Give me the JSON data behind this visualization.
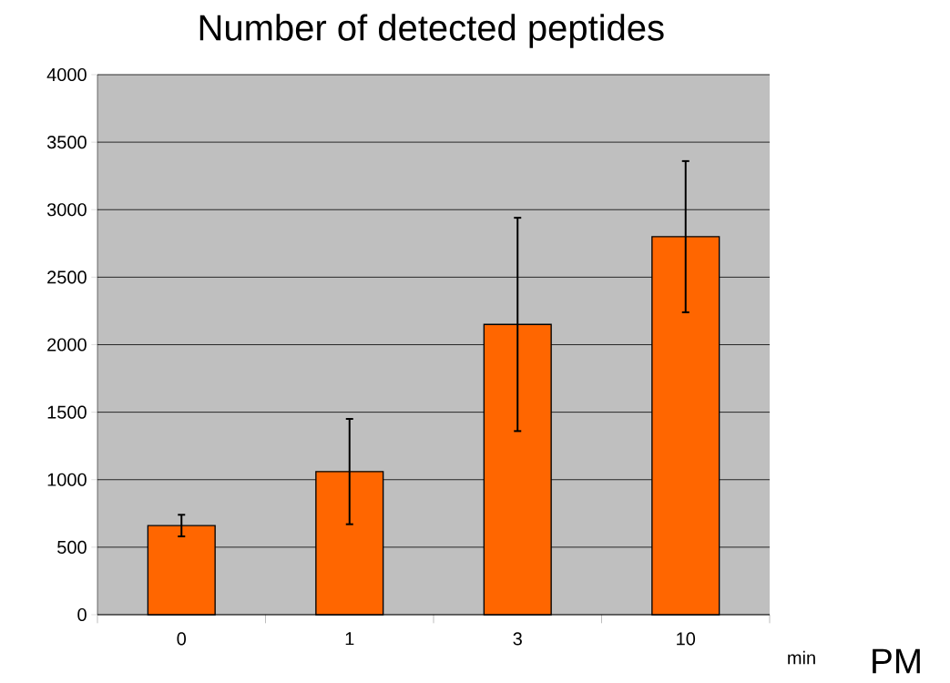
{
  "chart_data": {
    "type": "bar",
    "title": "Number of detected peptides",
    "xlabel": "min",
    "annotations": [
      "PM"
    ],
    "categories": [
      "0",
      "1",
      "3",
      "10"
    ],
    "values": [
      660,
      1060,
      2150,
      2800
    ],
    "errors": [
      80,
      390,
      790,
      560
    ],
    "color": "#ff6600",
    "ylim": [
      0,
      4000
    ],
    "yticks": [
      0,
      500,
      1000,
      1500,
      2000,
      2500,
      3000,
      3500,
      4000
    ],
    "grid": "y"
  }
}
